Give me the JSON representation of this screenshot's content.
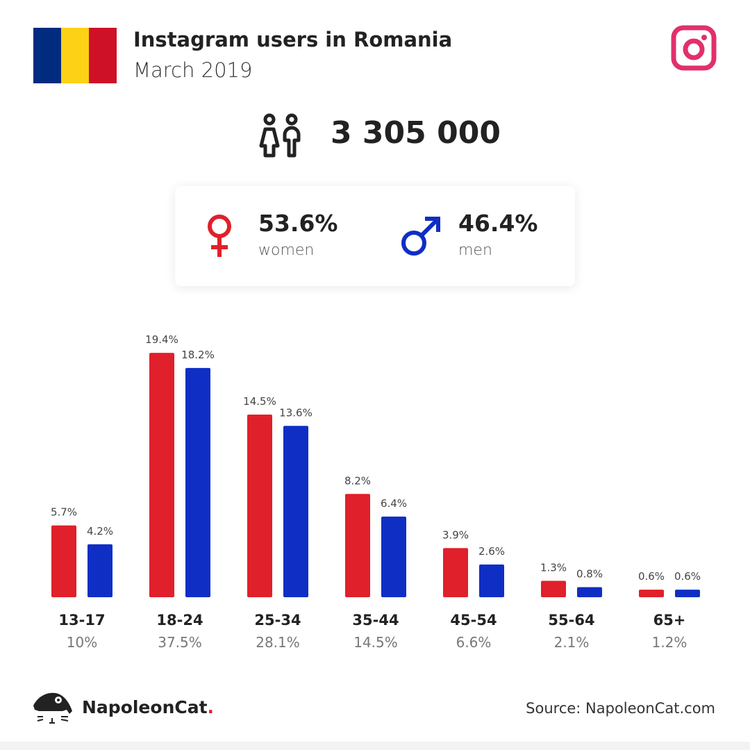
{
  "header": {
    "title": "Instagram users in Romania",
    "subtitle": "March 2019",
    "flag_colors": [
      "#002b7f",
      "#fcd116",
      "#ce1126"
    ]
  },
  "total": {
    "value": "3 305 000",
    "icon": "people-icon"
  },
  "gender": {
    "women_pct": "53.6%",
    "women_label": "women",
    "men_pct": "46.4%",
    "men_label": "men",
    "women_color": "#e0202a",
    "men_color": "#0f2ec4"
  },
  "chart_data": {
    "type": "bar",
    "categories": [
      "13-17",
      "18-24",
      "25-34",
      "35-44",
      "45-54",
      "55-64",
      "65+"
    ],
    "category_totals": [
      "10%",
      "37.5%",
      "28.1%",
      "14.5%",
      "6.6%",
      "2.1%",
      "1.2%"
    ],
    "series": [
      {
        "name": "women",
        "color": "#e0202a",
        "values": [
          5.7,
          19.4,
          14.5,
          8.2,
          3.9,
          1.3,
          0.6
        ]
      },
      {
        "name": "men",
        "color": "#0f2ec4",
        "values": [
          4.2,
          18.2,
          13.6,
          6.4,
          2.6,
          0.8,
          0.6
        ]
      }
    ],
    "unit": "%"
  },
  "footer": {
    "brand": "NapoleonCat",
    "brand_dot": ".",
    "source": "Source: NapoleonCat.com"
  }
}
